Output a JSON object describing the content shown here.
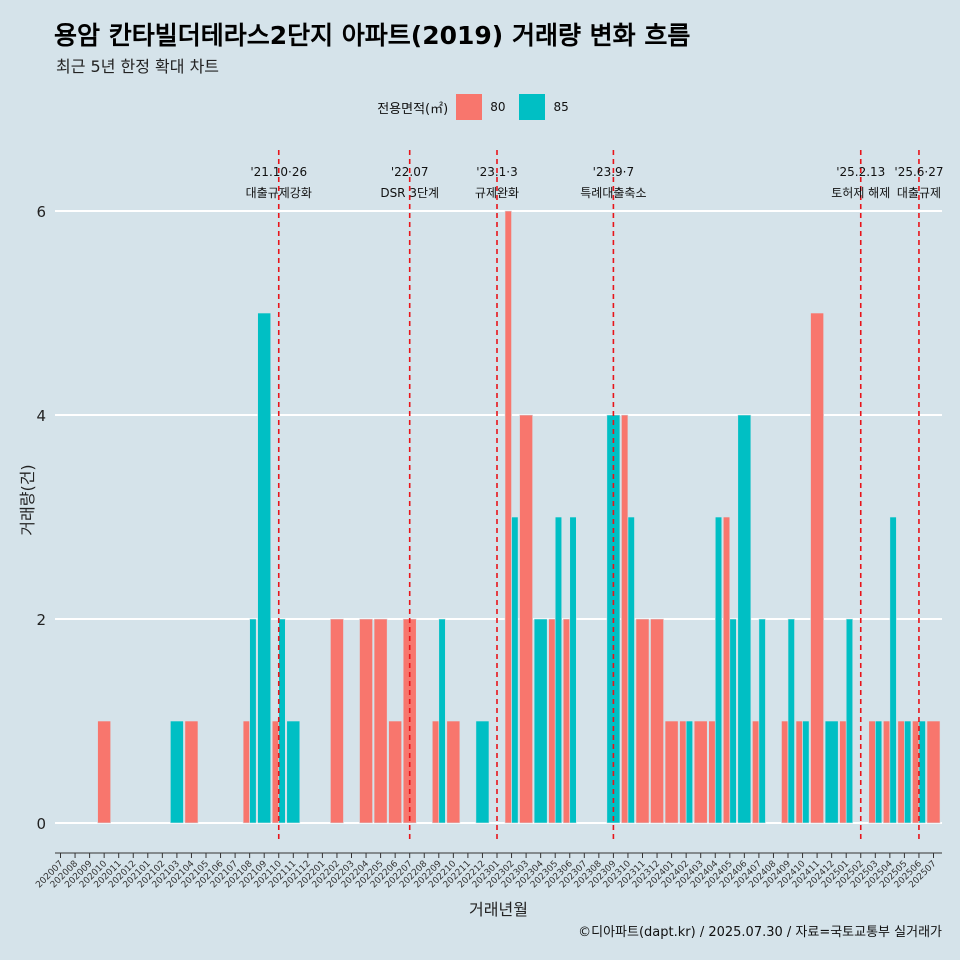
{
  "title": "용암 칸타빌더테라스2단지 아파트(2019) 거래량 변화 흐름",
  "subtitle": "최근 5년 한정 확대 차트",
  "legend": {
    "title": "전용면적(㎡)",
    "items": [
      {
        "label": "80",
        "color": "#f8766d"
      },
      {
        "label": "85",
        "color": "#00bfc4"
      }
    ]
  },
  "footer": "©디아파트(dapt.kr) / 2025.07.30 / 자료=국토교통부 실거래가",
  "chart_data": {
    "type": "bar",
    "xlabel": "거래년월",
    "ylabel": "거래량(건)",
    "ylim": [
      0,
      6
    ],
    "yticks": [
      0,
      2,
      4,
      6
    ],
    "grid": true,
    "legend_position": "top",
    "categories": [
      "202007",
      "202008",
      "202009",
      "202010",
      "202011",
      "202012",
      "202101",
      "202102",
      "202103",
      "202104",
      "202105",
      "202106",
      "202107",
      "202108",
      "202109",
      "202110",
      "202111",
      "202112",
      "202201",
      "202202",
      "202203",
      "202204",
      "202205",
      "202206",
      "202207",
      "202208",
      "202209",
      "202210",
      "202211",
      "202212",
      "202301",
      "202302",
      "202303",
      "202304",
      "202305",
      "202306",
      "202307",
      "202308",
      "202309",
      "202310",
      "202311",
      "202312",
      "202401",
      "202402",
      "202403",
      "202404",
      "202405",
      "202406",
      "202407",
      "202408",
      "202409",
      "202410",
      "202411",
      "202412",
      "202501",
      "202502",
      "202503",
      "202504",
      "202505",
      "202506",
      "202507"
    ],
    "series": [
      {
        "name": "80",
        "color": "#f8766d",
        "values": [
          0,
          0,
          0,
          1,
          0,
          0,
          0,
          0,
          0,
          1,
          0,
          0,
          0,
          1,
          0,
          1,
          0,
          0,
          0,
          2,
          0,
          2,
          2,
          1,
          2,
          0,
          1,
          1,
          0,
          0,
          0,
          6,
          4,
          0,
          2,
          2,
          0,
          0,
          0,
          4,
          2,
          2,
          1,
          1,
          1,
          1,
          3,
          0,
          1,
          0,
          1,
          1,
          5,
          0,
          1,
          0,
          1,
          1,
          1,
          1,
          1
        ]
      },
      {
        "name": "85",
        "color": "#00bfc4",
        "values": [
          0,
          0,
          0,
          0,
          0,
          0,
          0,
          0,
          1,
          0,
          0,
          0,
          0,
          2,
          5,
          2,
          1,
          0,
          0,
          0,
          0,
          0,
          0,
          0,
          0,
          0,
          2,
          0,
          0,
          1,
          0,
          3,
          0,
          2,
          3,
          3,
          0,
          0,
          4,
          3,
          0,
          0,
          0,
          1,
          0,
          3,
          2,
          4,
          2,
          0,
          2,
          1,
          0,
          1,
          2,
          0,
          1,
          3,
          1,
          1,
          0
        ]
      }
    ],
    "events": [
      {
        "index": 15,
        "date": "'21.10·26",
        "label": "대출규제강화"
      },
      {
        "index": 24,
        "date": "'22.07",
        "label": "DSR 3단계"
      },
      {
        "index": 30,
        "date": "'23.1·3",
        "label": "규제완화"
      },
      {
        "index": 38,
        "date": "'23.9·7",
        "label": "특례대출축소"
      },
      {
        "index": 55,
        "date": "'25.2.13",
        "label": "토허제 해제"
      },
      {
        "index": 59,
        "date": "'25.6·27",
        "label": "대출규제"
      }
    ]
  }
}
